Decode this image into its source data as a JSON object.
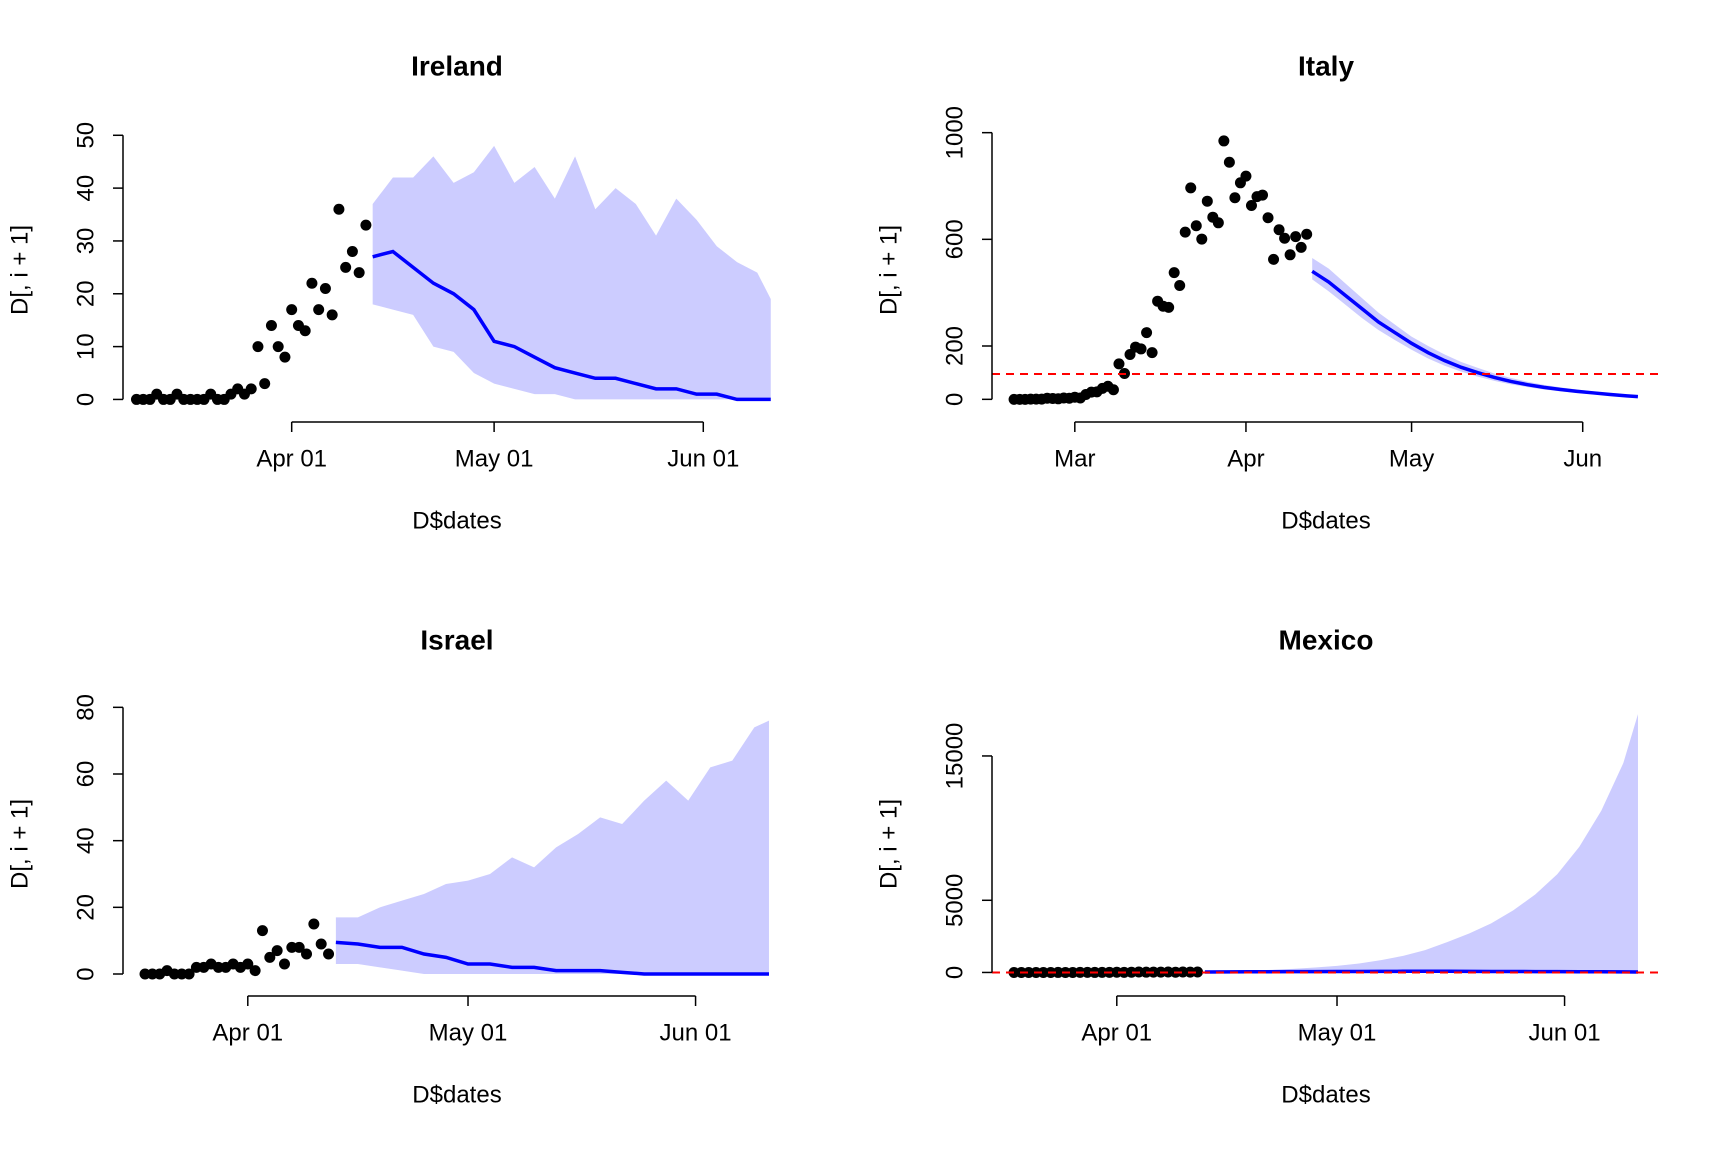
{
  "chart_data": [
    {
      "type": "scatter",
      "title": "Ireland",
      "xlabel": "D$dates",
      "ylabel": "D[, i + 1]",
      "xlim": [
        "Mar 07",
        "Jun 14"
      ],
      "ylim": [
        -2,
        51
      ],
      "xticks": [
        "Apr 01",
        "May 01",
        "Jun 01"
      ],
      "yticks": [
        0,
        10,
        20,
        30,
        40,
        50
      ],
      "series": [
        {
          "color": "#000000",
          "x": [
            "Mar 09",
            "Mar 10",
            "Mar 11",
            "Mar 12",
            "Mar 13",
            "Mar 14",
            "Mar 15",
            "Mar 16",
            "Mar 17",
            "Mar 18",
            "Mar 19",
            "Mar 20",
            "Mar 21",
            "Mar 22",
            "Mar 23",
            "Mar 24",
            "Mar 25",
            "Mar 26",
            "Mar 27",
            "Mar 28",
            "Mar 29",
            "Mar 30",
            "Mar 31",
            "Apr 01",
            "Apr 02",
            "Apr 03",
            "Apr 04",
            "Apr 05",
            "Apr 06",
            "Apr 07",
            "Apr 08",
            "Apr 09",
            "Apr 10",
            "Apr 11",
            "Apr 12"
          ],
          "values": [
            0,
            0,
            0,
            1,
            0,
            0,
            1,
            0,
            0,
            0,
            0,
            1,
            0,
            0,
            1,
            2,
            1,
            2,
            10,
            3,
            14,
            10,
            8,
            17,
            14,
            13,
            22,
            17,
            21,
            16,
            36,
            25,
            28,
            24,
            33
          ]
        }
      ],
      "forecast": {
        "color": "#0000ff",
        "band_color": "#ccccff",
        "x": [
          "Apr 13",
          "Apr 16",
          "Apr 19",
          "Apr 22",
          "Apr 25",
          "Apr 28",
          "May 01",
          "May 04",
          "May 07",
          "May 10",
          "May 13",
          "May 16",
          "May 19",
          "May 22",
          "May 25",
          "May 28",
          "May 31",
          "Jun 03",
          "Jun 06",
          "Jun 09",
          "Jun 11"
        ],
        "values": [
          27,
          28,
          25,
          22,
          20,
          17,
          11,
          10,
          8,
          6,
          5,
          4,
          4,
          3,
          2,
          2,
          1,
          1,
          0,
          0,
          0
        ],
        "upper": [
          37,
          42,
          42,
          46,
          41,
          43,
          48,
          41,
          44,
          38,
          46,
          36,
          40,
          37,
          31,
          38,
          34,
          29,
          26,
          24,
          19
        ],
        "lower": [
          18,
          17,
          16,
          10,
          9,
          5,
          3,
          2,
          1,
          1,
          0,
          0,
          0,
          0,
          0,
          0,
          0,
          0,
          0,
          0,
          0
        ]
      }
    },
    {
      "type": "scatter",
      "title": "Italy",
      "xlabel": "D$dates",
      "ylabel": "D[, i + 1]",
      "xlim": [
        "Feb 15",
        "Jun 15"
      ],
      "ylim": [
        -40,
        1010
      ],
      "xticks": [
        {
          "value": "Mar 01",
          "label": "Mar"
        },
        {
          "value": "Apr 01",
          "label": "Apr"
        },
        {
          "value": "May 01",
          "label": "May"
        },
        {
          "value": "Jun 01",
          "label": "Jun"
        }
      ],
      "yticks": [
        0,
        200,
        600,
        1000
      ],
      "hline": 95,
      "hline_color": "#ff0000",
      "series": [
        {
          "color": "#000000",
          "x": [
            "Feb 19",
            "Feb 20",
            "Feb 21",
            "Feb 22",
            "Feb 23",
            "Feb 24",
            "Feb 25",
            "Feb 26",
            "Feb 27",
            "Feb 28",
            "Feb 29",
            "Mar 01",
            "Mar 02",
            "Mar 03",
            "Mar 04",
            "Mar 05",
            "Mar 06",
            "Mar 07",
            "Mar 08",
            "Mar 09",
            "Mar 10",
            "Mar 11",
            "Mar 12",
            "Mar 13",
            "Mar 14",
            "Mar 15",
            "Mar 16",
            "Mar 17",
            "Mar 18",
            "Mar 19",
            "Mar 20",
            "Mar 21",
            "Mar 22",
            "Mar 23",
            "Mar 24",
            "Mar 25",
            "Mar 26",
            "Mar 27",
            "Mar 28",
            "Mar 29",
            "Mar 30",
            "Mar 31",
            "Apr 01",
            "Apr 02",
            "Apr 03",
            "Apr 04",
            "Apr 05",
            "Apr 06",
            "Apr 07",
            "Apr 08",
            "Apr 09",
            "Apr 10",
            "Apr 11",
            "Apr 12"
          ],
          "values": [
            0,
            0,
            0,
            1,
            1,
            1,
            4,
            3,
            2,
            5,
            4,
            8,
            5,
            18,
            27,
            28,
            41,
            49,
            36,
            133,
            97,
            168,
            196,
            189,
            250,
            175,
            368,
            349,
            345,
            475,
            427,
            627,
            793,
            651,
            601,
            743,
            683,
            662,
            969,
            889,
            756,
            812,
            837,
            727,
            760,
            766,
            681,
            525,
            636,
            604,
            542,
            610,
            570,
            619
          ]
        }
      ],
      "forecast": {
        "color": "#0000ff",
        "band_color": "#ccccff",
        "x": [
          "Apr 13",
          "Apr 16",
          "Apr 19",
          "Apr 22",
          "Apr 25",
          "Apr 28",
          "May 01",
          "May 04",
          "May 07",
          "May 10",
          "May 13",
          "May 16",
          "May 19",
          "May 22",
          "May 25",
          "May 28",
          "May 31",
          "Jun 03",
          "Jun 06",
          "Jun 09",
          "Jun 11"
        ],
        "values": [
          480,
          440,
          390,
          340,
          290,
          250,
          210,
          175,
          145,
          120,
          100,
          82,
          67,
          55,
          45,
          37,
          30,
          24,
          18,
          13,
          10
        ],
        "upper": [
          530,
          490,
          435,
          380,
          325,
          280,
          235,
          200,
          168,
          140,
          118,
          97,
          80,
          66,
          54,
          45,
          37,
          30,
          23,
          17,
          13
        ],
        "lower": [
          450,
          405,
          355,
          305,
          260,
          222,
          186,
          153,
          126,
          104,
          85,
          69,
          56,
          46,
          37,
          30,
          24,
          19,
          14,
          10,
          7
        ]
      }
    },
    {
      "type": "scatter",
      "title": "Israel",
      "xlabel": "D$dates",
      "ylabel": "D[, i + 1]",
      "xlim": [
        "Mar 15",
        "Jun 14"
      ],
      "ylim": [
        -3,
        81
      ],
      "xticks": [
        "Apr 01",
        "May 01",
        "Jun 01"
      ],
      "yticks": [
        0,
        20,
        40,
        60,
        80
      ],
      "series": [
        {
          "color": "#000000",
          "x": [
            "Mar 18",
            "Mar 19",
            "Mar 20",
            "Mar 21",
            "Mar 22",
            "Mar 23",
            "Mar 24",
            "Mar 25",
            "Mar 26",
            "Mar 27",
            "Mar 28",
            "Mar 29",
            "Mar 30",
            "Mar 31",
            "Apr 01",
            "Apr 02",
            "Apr 03",
            "Apr 04",
            "Apr 05",
            "Apr 06",
            "Apr 07",
            "Apr 08",
            "Apr 09",
            "Apr 10",
            "Apr 11",
            "Apr 12"
          ],
          "values": [
            0,
            0,
            0,
            1,
            0,
            0,
            0,
            2,
            2,
            3,
            2,
            2,
            3,
            2,
            3,
            1,
            13,
            5,
            7,
            3,
            8,
            8,
            6,
            15,
            9,
            6
          ]
        }
      ],
      "forecast": {
        "color": "#0000ff",
        "band_color": "#ccccff",
        "x": [
          "Apr 13",
          "Apr 16",
          "Apr 19",
          "Apr 22",
          "Apr 25",
          "Apr 28",
          "May 01",
          "May 04",
          "May 07",
          "May 10",
          "May 13",
          "May 16",
          "May 19",
          "May 22",
          "May 25",
          "May 28",
          "May 31",
          "Jun 03",
          "Jun 06",
          "Jun 09",
          "Jun 11"
        ],
        "values": [
          9.5,
          9,
          8,
          8,
          6,
          5,
          3,
          3,
          2,
          2,
          1,
          1,
          1,
          0.5,
          0,
          0,
          0,
          0,
          0,
          0,
          0
        ],
        "upper": [
          17,
          17,
          20,
          22,
          24,
          27,
          28,
          30,
          35,
          32,
          38,
          42,
          47,
          45,
          52,
          58,
          52,
          62,
          64,
          74,
          76
        ],
        "lower": [
          3,
          3,
          2,
          1,
          0,
          0,
          0,
          0,
          0,
          0,
          0,
          0,
          0,
          0,
          0,
          0,
          0,
          0,
          0,
          0,
          0
        ]
      }
    },
    {
      "type": "scatter",
      "title": "Mexico",
      "xlabel": "D$dates",
      "ylabel": "D[, i + 1]",
      "xlim": [
        "Mar 15",
        "Jun 14"
      ],
      "ylim": [
        -800,
        18600
      ],
      "xticks": [
        "Apr 01",
        "May 01",
        "Jun 01"
      ],
      "yticks": [
        0,
        5000,
        15000
      ],
      "hline": 0,
      "hline_color": "#ff0000",
      "series": [
        {
          "color": "#000000",
          "x": [
            "Mar 18",
            "Mar 19",
            "Mar 20",
            "Mar 21",
            "Mar 22",
            "Mar 23",
            "Mar 24",
            "Mar 25",
            "Mar 26",
            "Mar 27",
            "Mar 28",
            "Mar 29",
            "Mar 30",
            "Mar 31",
            "Apr 01",
            "Apr 02",
            "Apr 03",
            "Apr 04",
            "Apr 05",
            "Apr 06",
            "Apr 07",
            "Apr 08",
            "Apr 09",
            "Apr 10",
            "Apr 11",
            "Apr 12"
          ],
          "values": [
            0,
            0,
            0,
            1,
            1,
            0,
            2,
            1,
            1,
            5,
            4,
            2,
            8,
            8,
            12,
            9,
            14,
            29,
            19,
            22,
            20,
            31,
            18,
            33,
            21,
            34
          ]
        }
      ],
      "forecast": {
        "color": "#0000ff",
        "band_color": "#ccccff",
        "x": [
          "Apr 13",
          "Apr 16",
          "Apr 19",
          "Apr 22",
          "Apr 25",
          "Apr 28",
          "May 01",
          "May 04",
          "May 07",
          "May 10",
          "May 13",
          "May 16",
          "May 19",
          "May 22",
          "May 25",
          "May 28",
          "May 31",
          "Jun 03",
          "Jun 06",
          "Jun 09",
          "Jun 11"
        ],
        "values": [
          35,
          40,
          45,
          50,
          55,
          60,
          65,
          70,
          75,
          80,
          80,
          80,
          75,
          70,
          65,
          60,
          55,
          50,
          45,
          40,
          35
        ],
        "upper": [
          60,
          90,
          130,
          180,
          250,
          340,
          460,
          620,
          850,
          1150,
          1550,
          2100,
          2700,
          3400,
          4300,
          5400,
          6800,
          8700,
          11200,
          14500,
          17900
        ],
        "lower": [
          0,
          0,
          0,
          0,
          0,
          0,
          0,
          0,
          0,
          0,
          0,
          0,
          0,
          0,
          0,
          0,
          0,
          0,
          0,
          0,
          0
        ]
      }
    }
  ]
}
